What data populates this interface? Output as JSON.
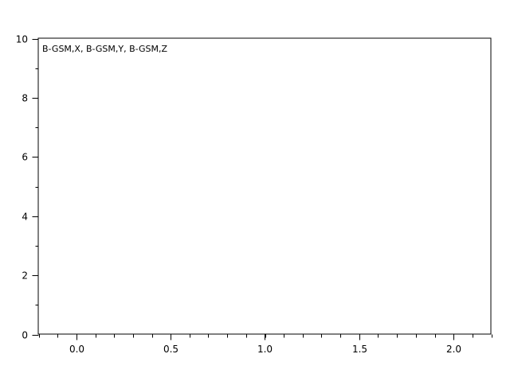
{
  "chart_data": {
    "type": "line",
    "title": "",
    "xlabel": "",
    "ylabel": "",
    "xlim": [
      -0.2,
      2.2
    ],
    "ylim": [
      0,
      10
    ],
    "x_major_ticks": [
      0.0,
      0.5,
      1.0,
      1.5,
      2.0
    ],
    "x_tick_labels": [
      "0.0",
      "0.5",
      "1.0",
      "1.5",
      "2.0"
    ],
    "x_minor_step": 0.1,
    "y_major_ticks": [
      0,
      2,
      4,
      6,
      8,
      10
    ],
    "y_tick_labels": [
      "0",
      "2",
      "4",
      "6",
      "8",
      "10"
    ],
    "y_minor_step": 1,
    "grid": false,
    "legend_text": "B-GSM,X, B-GSM,Y, B-GSM,Z",
    "legend_placement": "top-left",
    "series": []
  }
}
